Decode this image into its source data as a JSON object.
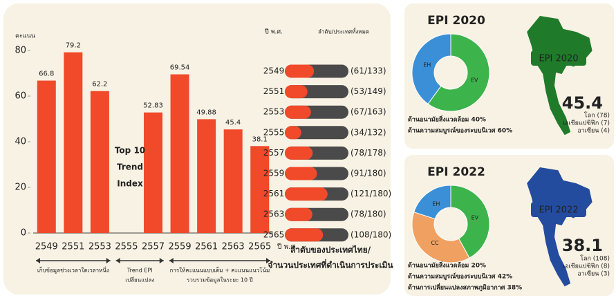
{
  "chart_data": [
    {
      "type": "bar",
      "y_label": "คะแนน",
      "x_label": "ปี พ.ศ.",
      "categories": [
        "2549",
        "2551",
        "2553",
        "2555",
        "2557",
        "2559",
        "2561",
        "2563",
        "2565"
      ],
      "values": [
        66.8,
        79.2,
        62.2,
        null,
        52.83,
        69.54,
        49.88,
        45.4,
        38.1
      ],
      "color": "#f04a2a",
      "ylim": [
        0,
        80
      ],
      "yticks": [
        0,
        20,
        40,
        60,
        80
      ],
      "annotations": [
        "Top 10",
        "Trend",
        "Index"
      ],
      "periods": [
        {
          "lines": [
            "เก็บข้อมูลช่วงเวลาใดเวลาหนึ่ง"
          ]
        },
        {
          "lines": [
            "Trend EPI",
            "เปลี่ยนแปลง"
          ]
        },
        {
          "lines": [
            "การให้คะแนนแบบเต็ม + คะแนนแนวโน้ม",
            "รวบรวมข้อมูลในระยะ 10 ปี"
          ]
        }
      ]
    },
    {
      "type": "rank",
      "header_year": "ปี พ.ศ.",
      "header_rank": "ลำดับ/ประเทศทั้งหมด",
      "title_lines": [
        "ลำดับของประเทศไทย/",
        "จำนวนประเทศที่ดำเนินการประเมิน"
      ],
      "categories": [
        "2549",
        "2551",
        "2553",
        "2555",
        "2557",
        "2559",
        "2561",
        "2563",
        "2565"
      ],
      "ranks": [
        61,
        53,
        67,
        34,
        78,
        91,
        121,
        78,
        108
      ],
      "totals": [
        133,
        149,
        163,
        132,
        178,
        180,
        180,
        180,
        180
      ],
      "value_labels": [
        "(61/133)",
        "(53/149)",
        "(67/163)",
        "(34/132)",
        "(78/178)",
        "(91/180)",
        "(121/180)",
        "(78/180)",
        "(108/180)"
      ],
      "color": "#f04a2a",
      "rest_color": "#4a4a4a"
    }
  ],
  "panels": [
    {
      "title": "EPI 2020",
      "map_label": "EPI 2020",
      "score": "45.4",
      "map_color": "#1f7a2a",
      "ranks": [
        "โลก (78)",
        "เอเชียแปซิฟิก (7)",
        "อาเซียน (4)"
      ],
      "legend": [
        "ด้านอนามัยสิ่งแวดล้อม 40%",
        "ด้านความสมบูรณ์ของระบบนิเวศ 60%"
      ],
      "segments": [
        {
          "label": "EV",
          "value": 60,
          "color": "#3cb44b"
        },
        {
          "label": "EH",
          "value": 40,
          "color": "#3b8fd6"
        }
      ]
    },
    {
      "title": "EPI 2022",
      "map_label": "EPI 2022",
      "score": "38.1",
      "map_color": "#244c9e",
      "ranks": [
        "โลก (108)",
        "เอเชียแปซิฟิก (8)",
        "อาเซียน (3)"
      ],
      "legend": [
        "ด้านอนามัยสิ่งแวดล้อม 20%",
        "ด้านความสมบูรณ์ของระบบนิเวศ 42%",
        "ด้านการเปลี่ยนแปลงสภาพภูมิอากาศ 38%"
      ],
      "segments": [
        {
          "label": "EV",
          "value": 42,
          "color": "#3cb44b"
        },
        {
          "label": "CC",
          "value": 38,
          "color": "#f0a060"
        },
        {
          "label": "EH",
          "value": 20,
          "color": "#3b8fd6"
        }
      ]
    }
  ]
}
